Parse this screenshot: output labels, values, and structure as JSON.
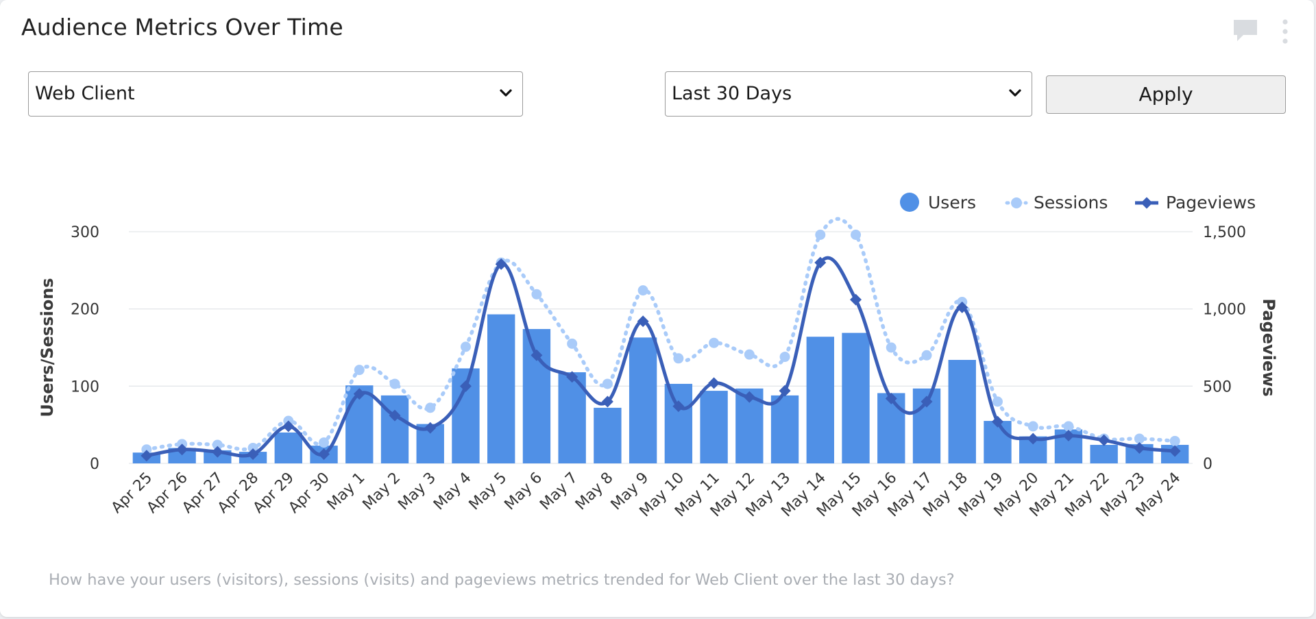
{
  "widget": {
    "title": "Audience Metrics Over Time",
    "icons": [
      "comment-icon",
      "more-vertical-icon"
    ]
  },
  "filters": {
    "source_select": {
      "value": "Web Client"
    },
    "range_select": {
      "value": "Last 30 Days"
    },
    "apply_label": "Apply"
  },
  "footnote": "How have your users (visitors), sessions (visits) and pageviews metrics trended for Web Client over the last 30 days?",
  "colors": {
    "users": "#5090e6",
    "sessions": "#a9cbf9",
    "pageviews": "#3a5fb8",
    "grid": "#e4e6ea",
    "axis_text": "#333333"
  },
  "chart_data": {
    "type": "bar",
    "categories": [
      "Apr 25",
      "Apr 26",
      "Apr 27",
      "Apr 28",
      "Apr 29",
      "Apr 30",
      "May 1",
      "May 2",
      "May 3",
      "May 4",
      "May 5",
      "May 6",
      "May 7",
      "May 8",
      "May 9",
      "May 10",
      "May 11",
      "May 12",
      "May 13",
      "May 14",
      "May 15",
      "May 16",
      "May 17",
      "May 18",
      "May 19",
      "May 20",
      "May 21",
      "May 22",
      "May 23",
      "May 24"
    ],
    "series": [
      {
        "name": "Users",
        "type": "bar",
        "axis": "left",
        "values": [
          14,
          20,
          17,
          15,
          40,
          23,
          101,
          88,
          51,
          123,
          193,
          174,
          118,
          72,
          163,
          103,
          94,
          97,
          88,
          164,
          169,
          91,
          97,
          134,
          55,
          35,
          44,
          24,
          25,
          24
        ]
      },
      {
        "name": "Sessions",
        "type": "line",
        "style": "dotted",
        "axis": "left",
        "values": [
          18,
          25,
          24,
          20,
          55,
          27,
          121,
          103,
          72,
          151,
          260,
          219,
          155,
          103,
          224,
          136,
          156,
          141,
          138,
          296,
          296,
          150,
          140,
          209,
          80,
          48,
          48,
          32,
          32,
          29
        ]
      },
      {
        "name": "Pageviews",
        "type": "line",
        "style": "solid",
        "axis": "right",
        "values": [
          50,
          90,
          75,
          60,
          240,
          60,
          450,
          310,
          230,
          500,
          1290,
          700,
          560,
          400,
          920,
          370,
          520,
          430,
          470,
          1300,
          1060,
          420,
          400,
          1010,
          270,
          160,
          180,
          150,
          100,
          80
        ]
      }
    ],
    "y_left": {
      "label": "Users/Sessions",
      "min": 0,
      "max": 300,
      "ticks": [
        "0",
        "100",
        "200",
        "300"
      ]
    },
    "y_right": {
      "label": "Pageviews",
      "min": 0,
      "max": 1500,
      "ticks": [
        "0",
        "500",
        "1,000",
        "1,500"
      ]
    },
    "grid": true,
    "legend_position": "top-right"
  }
}
